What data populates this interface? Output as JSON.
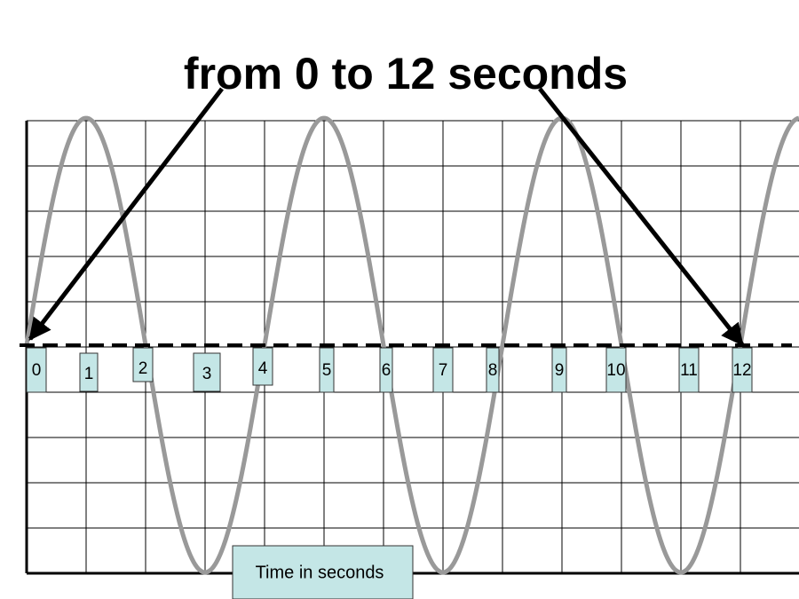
{
  "title": "from 0 to 12 seconds",
  "time_labels": [
    "0",
    "1",
    "2",
    "3",
    "4",
    "5",
    "6",
    "7",
    "8",
    "9",
    "10",
    "11",
    "12"
  ],
  "caption": "Time in seconds"
}
